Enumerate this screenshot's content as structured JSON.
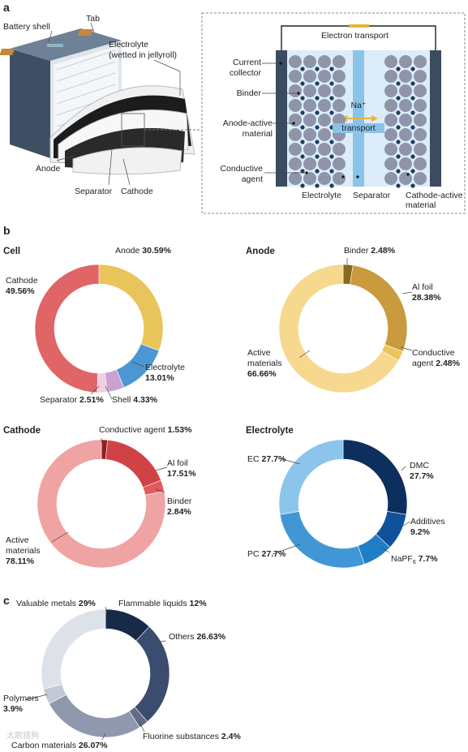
{
  "panel_a": {
    "label": "a",
    "labels": {
      "battery_shell": "Battery shell",
      "tab": "Tab",
      "electrolyte_l1": "Electrolyte",
      "electrolyte_l2": "(wetted in jellyroll)",
      "anode": "Anode",
      "separator": "Separator",
      "cathode": "Cathode"
    },
    "detail": {
      "electron_transport": "Electron transport",
      "current_collector_l1": "Current",
      "current_collector_l2": "collector",
      "binder": "Binder",
      "anode_active_l1": "Anode-active",
      "anode_active_l2": "material",
      "conductive_l1": "Conductive",
      "conductive_l2": "agent",
      "na_l1": "Na⁺",
      "na_l2": "transport",
      "electrolyte": "Electrolyte",
      "separator": "Separator",
      "cathode_active_l1": "Cathode-active",
      "cathode_active_l2": "material"
    }
  },
  "panel_b": {
    "label": "b"
  },
  "panel_c": {
    "label": "c"
  },
  "watermark": "太歌猎狗",
  "chart_data": [
    {
      "type": "pie",
      "title": "Cell",
      "slices": [
        {
          "name": "Anode",
          "value": 30.59,
          "color": "#e8c45a"
        },
        {
          "name": "Electrolyte",
          "value": 13.01,
          "color": "#4b97d3"
        },
        {
          "name": "Shell",
          "value": 4.33,
          "color": "#c9a2d1"
        },
        {
          "name": "Separator",
          "value": 2.51,
          "color": "#efcfe6"
        },
        {
          "name": "Cathode",
          "value": 49.56,
          "color": "#e06566"
        }
      ],
      "labels": [
        {
          "name": "Anode",
          "value": "30.59%"
        },
        {
          "name": "Electrolyte",
          "value": "13.01%"
        },
        {
          "name": "Shell",
          "value": "4.33%"
        },
        {
          "name": "Separator",
          "value": "2.51%"
        },
        {
          "name": "Cathode",
          "value": "49.56%"
        }
      ]
    },
    {
      "type": "pie",
      "title": "Anode",
      "slices": [
        {
          "name": "Binder",
          "value": 2.48,
          "color": "#8a6a1e"
        },
        {
          "name": "Al foil",
          "value": 28.38,
          "color": "#c99a3e"
        },
        {
          "name": "Conductive agent",
          "value": 2.48,
          "color": "#e9c65c"
        },
        {
          "name": "Active materials",
          "value": 66.66,
          "color": "#f6d98e"
        }
      ],
      "labels": [
        {
          "name": "Binder",
          "value": "2.48%"
        },
        {
          "name": "Al foil",
          "value": "28.38%"
        },
        {
          "name": "Conductive",
          "name2": "agent",
          "value": "2.48%"
        },
        {
          "name": "Active",
          "name2": "materials",
          "value": "66.66%"
        }
      ]
    },
    {
      "type": "pie",
      "title": "Cathode",
      "slices": [
        {
          "name": "Conductive agent",
          "value": 1.53,
          "color": "#8e1f26"
        },
        {
          "name": "Al foil",
          "value": 17.51,
          "color": "#cf4347"
        },
        {
          "name": "Binder",
          "value": 2.84,
          "color": "#e3595d"
        },
        {
          "name": "Active materials",
          "value": 78.11,
          "color": "#f0a3a3"
        }
      ],
      "labels": [
        {
          "name": "Conductive agent",
          "value": "1.53%"
        },
        {
          "name": "Al foil",
          "value": "17.51%"
        },
        {
          "name": "Binder",
          "value": "2.84%"
        },
        {
          "name": "Active",
          "name2": "materials",
          "value": "78.11%"
        }
      ]
    },
    {
      "type": "pie",
      "title": "Electrolyte",
      "slices": [
        {
          "name": "DMC",
          "value": 27.7,
          "color": "#0d2f5e"
        },
        {
          "name": "Additives",
          "value": 9.2,
          "color": "#0f529b"
        },
        {
          "name": "NaPF6",
          "value": 7.7,
          "color": "#1f7fc6"
        },
        {
          "name": "PC",
          "value": 27.7,
          "color": "#4197d6"
        },
        {
          "name": "EC",
          "value": 27.7,
          "color": "#8cc5eb"
        }
      ],
      "labels": [
        {
          "name": "DMC",
          "value": "27.7%"
        },
        {
          "name": "Additives",
          "value": "9.2%"
        },
        {
          "name": "NaPF",
          "sub": "6",
          "value": "7.7%"
        },
        {
          "name": "PC",
          "value": "27.7%"
        },
        {
          "name": "EC",
          "value": "27.7%"
        }
      ]
    },
    {
      "type": "pie",
      "title": "",
      "slices": [
        {
          "name": "Flammable liquids",
          "value": 12,
          "color": "#172a48"
        },
        {
          "name": "Others",
          "value": 26.63,
          "color": "#3b4d6e"
        },
        {
          "name": "Fluorine substances",
          "value": 2.4,
          "color": "#606b84"
        },
        {
          "name": "Carbon materials",
          "value": 26.07,
          "color": "#8f98ad"
        },
        {
          "name": "Polymers",
          "value": 3.9,
          "color": "#c2c8d4"
        },
        {
          "name": "Valuable metals",
          "value": 29,
          "color": "#dde1e8"
        }
      ],
      "labels": [
        {
          "name": "Flammable liquids",
          "value": "12%"
        },
        {
          "name": "Others",
          "value": "26.63%"
        },
        {
          "name": "Fluorine substances",
          "value": "2.4%"
        },
        {
          "name": "Carbon materials",
          "value": "26.07%"
        },
        {
          "name": "Polymers",
          "value": "3.9%"
        },
        {
          "name": "Valuable metals",
          "value": "29%"
        }
      ]
    }
  ]
}
